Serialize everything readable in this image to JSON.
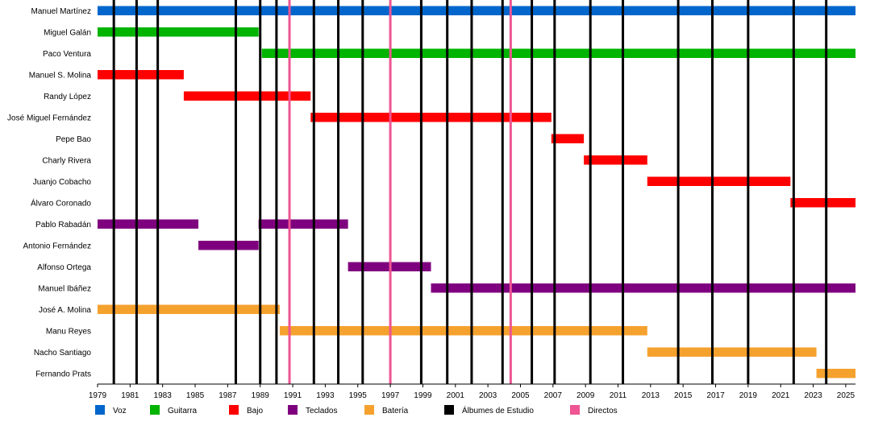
{
  "chart_data": {
    "type": "timeline",
    "xlim": [
      1979,
      2025.6
    ],
    "tick_years": [
      1979,
      1981,
      1983,
      1985,
      1987,
      1989,
      1991,
      1993,
      1995,
      1997,
      1999,
      2001,
      2003,
      2005,
      2007,
      2009,
      2011,
      2013,
      2015,
      2017,
      2019,
      2021,
      2023,
      2025
    ],
    "categories": [
      {
        "key": "voz",
        "label": "Voz",
        "color": "#0066CC"
      },
      {
        "key": "guitarra",
        "label": "Guitarra",
        "color": "#00B400"
      },
      {
        "key": "bajo",
        "label": "Bajo",
        "color": "#FF0000"
      },
      {
        "key": "teclados",
        "label": "Teclados",
        "color": "#7F007F"
      },
      {
        "key": "bateria",
        "label": "Batería",
        "color": "#F5A12E"
      },
      {
        "key": "albumes",
        "label": "Álbumes de Estudio",
        "color": "#000000"
      },
      {
        "key": "directos",
        "label": "Directos",
        "color": "#EE5592"
      }
    ],
    "members": [
      {
        "name": "Manuel Martínez",
        "role": "voz",
        "periods": [
          [
            1979,
            2025.6
          ]
        ]
      },
      {
        "name": "Miguel Galán",
        "role": "guitarra",
        "periods": [
          [
            1979,
            1988.9
          ]
        ]
      },
      {
        "name": "Paco Ventura",
        "role": "guitarra",
        "periods": [
          [
            1989.1,
            2025.6
          ]
        ]
      },
      {
        "name": "Manuel S. Molina",
        "role": "bajo",
        "periods": [
          [
            1979,
            1984.3
          ]
        ]
      },
      {
        "name": "Randy López",
        "role": "bajo",
        "periods": [
          [
            1984.3,
            1992.1
          ]
        ]
      },
      {
        "name": "José Miguel Fernández",
        "role": "bajo",
        "periods": [
          [
            1992.1,
            2006.9
          ]
        ]
      },
      {
        "name": "Pepe Bao",
        "role": "bajo",
        "periods": [
          [
            2006.9,
            2008.9
          ]
        ]
      },
      {
        "name": "Charly Rivera",
        "role": "bajo",
        "periods": [
          [
            2008.9,
            2012.8
          ]
        ]
      },
      {
        "name": "Juanjo Cobacho",
        "role": "bajo",
        "periods": [
          [
            2012.8,
            2021.6
          ]
        ]
      },
      {
        "name": "Álvaro Coronado",
        "role": "bajo",
        "periods": [
          [
            2021.6,
            2025.6
          ]
        ]
      },
      {
        "name": "Pablo Rabadán",
        "role": "teclados",
        "periods": [
          [
            1979,
            1985.2
          ],
          [
            1988.9,
            1994.4
          ]
        ]
      },
      {
        "name": "Antonio Fernández",
        "role": "teclados",
        "periods": [
          [
            1985.2,
            1988.9
          ]
        ]
      },
      {
        "name": "Alfonso Ortega",
        "role": "teclados",
        "periods": [
          [
            1994.4,
            1999.5
          ]
        ]
      },
      {
        "name": "Manuel Ibáñez",
        "role": "teclados",
        "periods": [
          [
            1999.5,
            2025.6
          ]
        ]
      },
      {
        "name": "José A. Molina",
        "role": "bateria",
        "periods": [
          [
            1979,
            1990.2
          ]
        ]
      },
      {
        "name": "Manu Reyes",
        "role": "bateria",
        "periods": [
          [
            1990.2,
            2012.8
          ]
        ]
      },
      {
        "name": "Nacho Santiago",
        "role": "bateria",
        "periods": [
          [
            2012.8,
            2023.2
          ]
        ]
      },
      {
        "name": "Fernando Prats",
        "role": "bateria",
        "periods": [
          [
            2023.2,
            2025.6
          ]
        ]
      }
    ],
    "studio_albums": [
      1980,
      1981.4,
      1982.7,
      1987.5,
      1989,
      1990,
      1992.3,
      1993.8,
      1995.3,
      1998.9,
      2000.5,
      2002,
      2003.9,
      2005.7,
      2007.1,
      2009.3,
      2011.3,
      2014.7,
      2016.8,
      2019,
      2021.8,
      2023.8
    ],
    "live_albums": [
      1990.8,
      1997,
      2004.4
    ]
  }
}
